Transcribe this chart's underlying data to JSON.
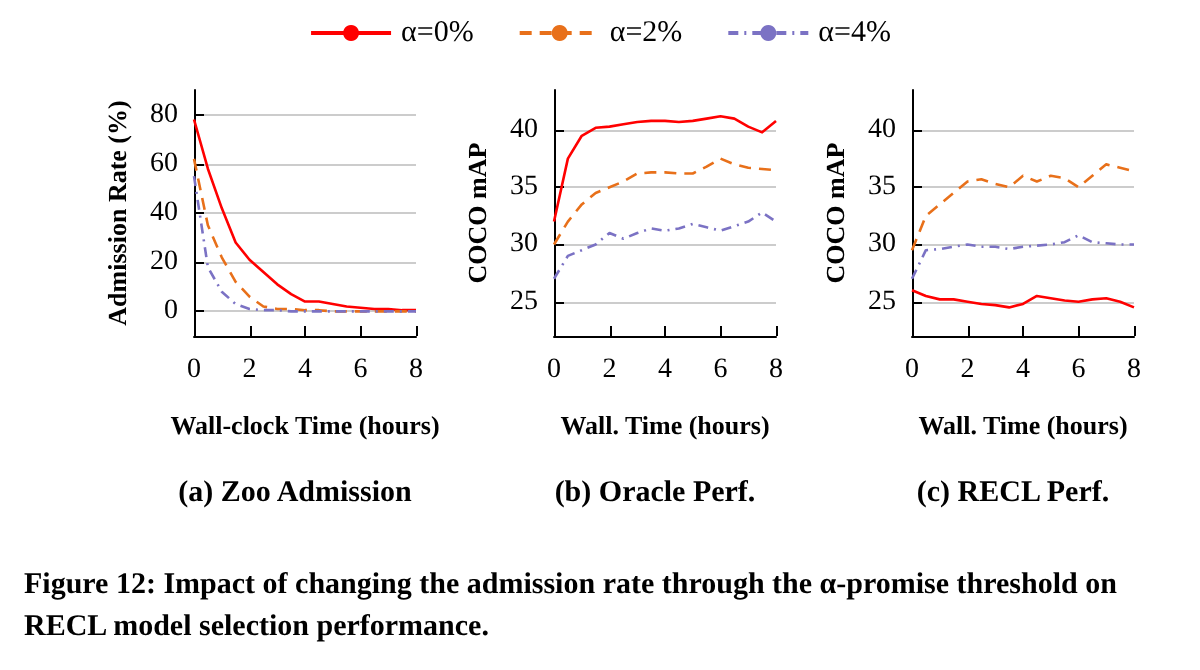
{
  "chart_data": [
    {
      "type": "line",
      "title": "(a) Zoo Admission",
      "xlabel": "Wall-clock Time (hours)",
      "ylabel": "Admission Rate (%)",
      "x": [
        0,
        0.5,
        1,
        1.5,
        2,
        2.5,
        3,
        3.5,
        4,
        4.5,
        5,
        5.5,
        6,
        6.5,
        7,
        7.5,
        8
      ],
      "xlim": [
        0,
        8
      ],
      "xticks": [
        0,
        2,
        4,
        6,
        8
      ],
      "ylim": [
        -10,
        90
      ],
      "yticks": [
        0,
        20,
        40,
        60,
        80
      ],
      "grid": "y",
      "legend": "top",
      "marker": "none",
      "annotations": [
        "Figure 12: Impact of changing the admission rate through the α-promise threshold on RECL model selection performance."
      ],
      "series": [
        {
          "name": "α=0%",
          "color": "#ff0000",
          "line_style": "solid",
          "values": [
            78,
            58,
            42,
            28,
            21,
            16,
            11,
            7,
            4,
            4,
            3,
            2,
            1.5,
            1,
            1,
            0.5,
            0.5
          ]
        },
        {
          "name": "α=2%",
          "color": "#e8701a",
          "line_style": "dashed",
          "values": [
            62,
            35,
            22,
            12,
            6,
            2,
            1,
            1,
            0.5,
            0.5,
            0,
            0,
            0,
            0,
            0,
            0,
            0
          ]
        },
        {
          "name": "α=4%",
          "color": "#7b72c4",
          "line_style": "dotted",
          "values": [
            55,
            18,
            8,
            3,
            1,
            0.5,
            0.5,
            0,
            0,
            0,
            0,
            0,
            0,
            0,
            0,
            0,
            0
          ]
        }
      ]
    },
    {
      "type": "line",
      "title": "(b) Oracle Perf.",
      "xlabel": "Wall. Time (hours)",
      "ylabel": "COCO mAP",
      "x": [
        0,
        0.5,
        1,
        1.5,
        2,
        2.5,
        3,
        3.5,
        4,
        4.5,
        5,
        5.5,
        6,
        6.5,
        7,
        7.5,
        8
      ],
      "xlim": [
        0,
        8
      ],
      "xticks": [
        0,
        2,
        4,
        6,
        8
      ],
      "ylim": [
        22,
        43.5
      ],
      "yticks": [
        25,
        30,
        35,
        40
      ],
      "grid": "y",
      "marker": "none",
      "series": [
        {
          "color": "#ff0000",
          "line_style": "solid",
          "values": [
            32,
            37.5,
            39.5,
            40.2,
            40.3,
            40.5,
            40.7,
            40.8,
            40.8,
            40.7,
            40.8,
            41,
            41.2,
            41,
            40.3,
            39.8,
            40.8
          ]
        },
        {
          "color": "#e8701a",
          "line_style": "dashed",
          "values": [
            30,
            32,
            33.5,
            34.5,
            35,
            35.5,
            36.2,
            36.3,
            36.3,
            36.2,
            36.2,
            36.8,
            37.5,
            37,
            36.7,
            36.6,
            36.5
          ]
        },
        {
          "color": "#7b72c4",
          "line_style": "dotted",
          "values": [
            27,
            29,
            29.5,
            30,
            31,
            30.5,
            31,
            31.4,
            31.2,
            31.4,
            31.8,
            31.5,
            31.2,
            31.6,
            32,
            32.8,
            32
          ]
        }
      ]
    },
    {
      "type": "line",
      "title": "(c) RECL Perf.",
      "xlabel": "Wall. Time (hours)",
      "ylabel": "COCO mAP",
      "x": [
        0,
        0.5,
        1,
        1.5,
        2,
        2.5,
        3,
        3.5,
        4,
        4.5,
        5,
        5.5,
        6,
        6.5,
        7,
        7.5,
        8
      ],
      "xlim": [
        0,
        8
      ],
      "xticks": [
        0,
        2,
        4,
        6,
        8
      ],
      "ylim": [
        22,
        43.5
      ],
      "yticks": [
        25,
        30,
        35,
        40
      ],
      "grid": "y",
      "marker": "none",
      "series": [
        {
          "color": "#ff0000",
          "line_style": "solid",
          "values": [
            26,
            25.5,
            25.2,
            25.2,
            25,
            24.8,
            24.7,
            24.5,
            24.8,
            25.5,
            25.3,
            25.1,
            25,
            25.2,
            25.3,
            25,
            24.5
          ]
        },
        {
          "color": "#e8701a",
          "line_style": "dashed",
          "values": [
            29.5,
            32.5,
            33.5,
            34.5,
            35.5,
            35.7,
            35.3,
            35,
            36,
            35.5,
            36,
            35.8,
            35,
            36,
            37,
            36.7,
            36.4
          ]
        },
        {
          "color": "#7b72c4",
          "line_style": "dotted",
          "values": [
            27,
            29.5,
            29.6,
            29.8,
            30,
            29.8,
            29.8,
            29.6,
            29.8,
            29.9,
            30,
            30.2,
            30.8,
            30.2,
            30.1,
            30,
            30
          ]
        }
      ]
    }
  ]
}
